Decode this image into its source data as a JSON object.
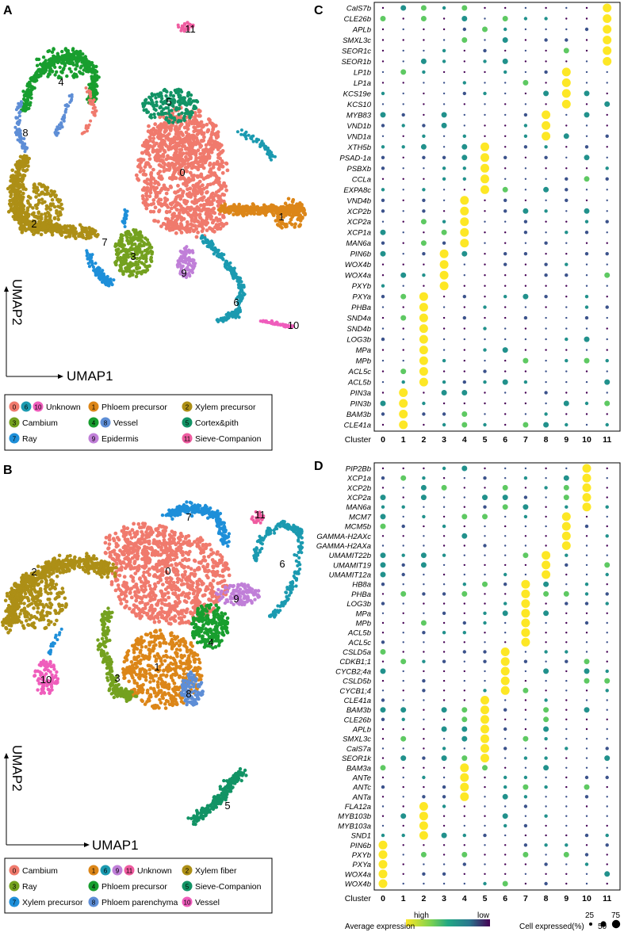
{
  "panels": {
    "A": "A",
    "B": "B",
    "C": "C",
    "D": "D"
  },
  "umap": {
    "xlabel": "UMAP1",
    "ylabel": "UMAP2"
  },
  "colors": {
    "0": "#f07a6d",
    "1": "#dc8618",
    "2": "#ad8f16",
    "3": "#74a11f",
    "4": "#189e2e",
    "5": "#129365",
    "6": "#1b9ab0",
    "7": "#1e8fd9",
    "8": "#5e8ed6",
    "9": "#c07fd8",
    "10": "#ef5dbc",
    "11": "#ef5ca0"
  },
  "legend_A": [
    {
      "ids": [
        "0",
        "6",
        "10"
      ],
      "label": "Unknown"
    },
    {
      "ids": [
        "1"
      ],
      "label": "Phloem precursor"
    },
    {
      "ids": [
        "2"
      ],
      "label": "Xylem precursor"
    },
    {
      "ids": [
        "3"
      ],
      "label": "Cambium"
    },
    {
      "ids": [
        "4",
        "8"
      ],
      "label": "Vessel"
    },
    {
      "ids": [
        "5"
      ],
      "label": "Cortex&pith"
    },
    {
      "ids": [
        "7"
      ],
      "label": "Ray"
    },
    {
      "ids": [
        "9"
      ],
      "label": "Epidermis"
    },
    {
      "ids": [
        "11"
      ],
      "label": "Sieve-Companion"
    }
  ],
  "legend_B": [
    {
      "ids": [
        "0"
      ],
      "label": "Cambium"
    },
    {
      "ids": [
        "1",
        "6",
        "9",
        "11"
      ],
      "label": "Unknown"
    },
    {
      "ids": [
        "2"
      ],
      "label": "Xylem fiber"
    },
    {
      "ids": [
        "3"
      ],
      "label": "Ray"
    },
    {
      "ids": [
        "4"
      ],
      "label": "Phloem precursor"
    },
    {
      "ids": [
        "5"
      ],
      "label": "Sieve-Companion"
    },
    {
      "ids": [
        "7"
      ],
      "label": "Xylem precursor"
    },
    {
      "ids": [
        "8"
      ],
      "label": "Phloem parenchyma"
    },
    {
      "ids": [
        "10"
      ],
      "label": "Vessel"
    }
  ],
  "chart_data": [
    {
      "type": "heatmap",
      "panel": "C",
      "xlabel": "Cluster",
      "clusters": [
        "0",
        "1",
        "2",
        "3",
        "4",
        "5",
        "6",
        "7",
        "8",
        "9",
        "10",
        "11"
      ],
      "genes": [
        "CalS7b",
        "CLE26b",
        "APLb",
        "SMXL3c",
        "SEOR1c",
        "SEOR1b",
        "LP1b",
        "LP1a",
        "KCS19e",
        "KCS10",
        "MYB83",
        "VND1b",
        "VND1a",
        "XTH5b",
        "PSAD-1a",
        "PSBXb",
        "CCLa",
        "EXPA8c",
        "VND4b",
        "XCP2b",
        "XCP2a",
        "XCP1a",
        "MAN6a",
        "PIN6b",
        "WOX4b",
        "WOX4a",
        "PXYb",
        "PXYa",
        "PHBa",
        "SND4a",
        "SND4b",
        "LOG3b",
        "MPa",
        "MPb",
        "ACL5c",
        "ACL5b",
        "PIN3a",
        "PIN3b",
        "BAM3b",
        "CLE41a"
      ],
      "marker_cluster": [
        11,
        11,
        11,
        11,
        11,
        11,
        9,
        9,
        9,
        9,
        8,
        8,
        8,
        5,
        5,
        5,
        5,
        5,
        4,
        4,
        4,
        4,
        4,
        3,
        3,
        3,
        3,
        2,
        2,
        2,
        2,
        2,
        2,
        2,
        2,
        2,
        1,
        1,
        1,
        1
      ]
    },
    {
      "type": "heatmap",
      "panel": "D",
      "xlabel": "Cluster",
      "clusters": [
        "0",
        "1",
        "2",
        "3",
        "4",
        "5",
        "6",
        "7",
        "8",
        "9",
        "10",
        "11"
      ],
      "genes": [
        "PIP2Bb",
        "XCP1a",
        "XCP2b",
        "XCP2a",
        "MAN6a",
        "MCM7",
        "MCM5b",
        "GAMMA-H2AXc",
        "GAMMA-H2AXa",
        "UMAMIT22b",
        "UMAMIT19",
        "UMAMIT12a",
        "HB8a",
        "PHBa",
        "LOG3b",
        "MPa",
        "MPb",
        "ACL5b",
        "ACL5c",
        "CSLD5a",
        "CDKB1;1",
        "CYCB2;4a",
        "CSLD5b",
        "CYCB1;4",
        "CLE41a",
        "BAM3b",
        "CLE26b",
        "APLb",
        "SMXL3c",
        "CalS7a",
        "SEOR1k",
        "BAM3a",
        "ANTe",
        "ANTc",
        "ANTa",
        "FLA12a",
        "MYB103b",
        "MYB103a",
        "SND1",
        "PIN6b",
        "PXYb",
        "PXYa",
        "WOX4a",
        "WOX4b"
      ],
      "marker_cluster": [
        10,
        10,
        10,
        10,
        10,
        9,
        9,
        9,
        9,
        8,
        8,
        8,
        7,
        7,
        7,
        7,
        7,
        7,
        7,
        6,
        6,
        6,
        6,
        6,
        5,
        5,
        5,
        5,
        5,
        5,
        5,
        4,
        4,
        4,
        4,
        2,
        2,
        2,
        2,
        0,
        0,
        0,
        0,
        0
      ]
    }
  ],
  "expr_legend": {
    "title": "Average expression",
    "high": "high",
    "low": "low"
  },
  "size_legend": {
    "title": "Cell expressed(%)",
    "values": [
      "25",
      "50",
      "75"
    ]
  }
}
